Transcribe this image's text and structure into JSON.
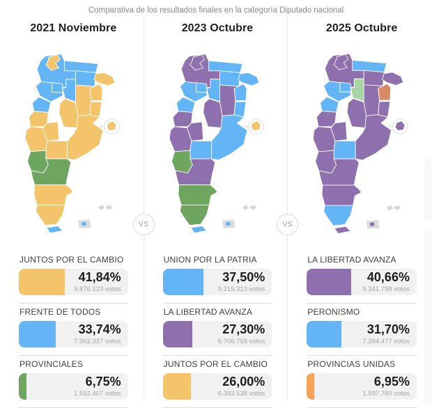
{
  "page": {
    "title": "Comparativa de los resultados finales en la categoría Diputado nacional"
  },
  "vs_label": "VS",
  "colors": {
    "blue": "#64b5f6",
    "yellow": "#f4c46a",
    "green": "#6ea55f",
    "purple": "#8d70ad",
    "light_green": "#a8d5a3",
    "salmon": "#d98a63",
    "orange": "#f8a157",
    "islands_gray": "#d7d7d7"
  },
  "columns": [
    {
      "title": "2021 Noviembre",
      "map": {
        "caba": "yellow",
        "islands": "blue",
        "provinces": {
          "jujuy": "yellow",
          "salta": "blue",
          "formosa": "blue",
          "chaco": "blue",
          "misiones": "yellow",
          "corrientes": "yellow",
          "tucuman": "blue",
          "santiago": "blue",
          "catamarca": "blue",
          "la_rioja": "blue",
          "santa_fe": "yellow",
          "entre_rios": "yellow",
          "cordoba": "yellow",
          "san_juan": "yellow",
          "san_luis": "yellow",
          "mendoza": "yellow",
          "la_pampa": "yellow",
          "buenos_aires": "yellow",
          "neuquen": "green",
          "rio_negro": "green",
          "chubut": "yellow",
          "santa_cruz": "yellow",
          "tierra_fuego": "blue"
        }
      },
      "results": [
        {
          "party": "JUNTOS POR EL CAMBIO",
          "percent": "41,84%",
          "percent_value": 41.84,
          "votes": "9.876.123 votos",
          "color": "yellow"
        },
        {
          "party": "FRENTE DE TODOS",
          "percent": "33,74%",
          "percent_value": 33.74,
          "votes": "7.962.337 votos",
          "color": "blue"
        },
        {
          "party": "PROVINCIALES",
          "percent": "6,75%",
          "percent_value": 6.75,
          "votes": "1.592.407 votos",
          "color": "green"
        }
      ]
    },
    {
      "title": "2023 Octubre",
      "map": {
        "caba": "yellow",
        "islands": "blue",
        "provinces": {
          "jujuy": "purple",
          "salta": "purple",
          "formosa": "blue",
          "chaco": "blue",
          "misiones": "blue",
          "corrientes": "blue",
          "tucuman": "blue",
          "santiago": "blue",
          "catamarca": "blue",
          "la_rioja": "blue",
          "santa_fe": "purple",
          "entre_rios": "blue",
          "cordoba": "purple",
          "san_juan": "purple",
          "san_luis": "purple",
          "mendoza": "purple",
          "la_pampa": "blue",
          "buenos_aires": "blue",
          "neuquen": "green",
          "rio_negro": "purple",
          "chubut": "green",
          "santa_cruz": "green",
          "tierra_fuego": "blue"
        }
      },
      "results": [
        {
          "party": "UNION POR LA PATRIA",
          "percent": "37,50%",
          "percent_value": 37.5,
          "votes": "9.215.313 votos",
          "color": "blue"
        },
        {
          "party": "LA LIBERTAD AVANZA",
          "percent": "27,30%",
          "percent_value": 27.3,
          "votes": "6.706.759 votos",
          "color": "purple"
        },
        {
          "party": "JUNTOS POR EL CAMBIO",
          "percent": "26,00%",
          "percent_value": 26.0,
          "votes": "6.393.538 votos",
          "color": "yellow"
        }
      ]
    },
    {
      "title": "2025 Octubre",
      "map": {
        "caba": "purple",
        "islands": "purple",
        "provinces": {
          "jujuy": "purple",
          "salta": "purple",
          "formosa": "blue",
          "chaco": "purple",
          "misiones": "purple",
          "corrientes": "salmon",
          "tucuman": "blue",
          "santiago": "light_green",
          "catamarca": "blue",
          "la_rioja": "blue",
          "santa_fe": "purple",
          "entre_rios": "purple",
          "cordoba": "purple",
          "san_juan": "purple",
          "san_luis": "purple",
          "mendoza": "purple",
          "la_pampa": "blue",
          "buenos_aires": "purple",
          "neuquen": "purple",
          "rio_negro": "purple",
          "chubut": "purple",
          "santa_cruz": "blue",
          "tierra_fuego": "purple"
        }
      },
      "results": [
        {
          "party": "LA LIBERTAD AVANZA",
          "percent": "40,66%",
          "percent_value": 40.66,
          "votes": "9.341.798 votos",
          "color": "purple"
        },
        {
          "party": "PERONISMO",
          "percent": "31,70%",
          "percent_value": 31.7,
          "votes": "7.284.477 votos",
          "color": "blue"
        },
        {
          "party": "PROVINCIAS UNIDAS",
          "percent": "6,95%",
          "percent_value": 6.95,
          "votes": "1.597.760 votos",
          "color": "orange"
        }
      ]
    }
  ],
  "chart_data": [
    {
      "type": "bar",
      "title": "2021 Noviembre",
      "categories": [
        "JUNTOS POR EL CAMBIO",
        "FRENTE DE TODOS",
        "PROVINCIALES"
      ],
      "values": [
        41.84,
        33.74,
        6.75
      ],
      "value_labels": [
        "41,84%",
        "33,74%",
        "6,75%"
      ],
      "votes": [
        "9.876.123 votos",
        "7.962.337 votos",
        "1.592.407 votos"
      ],
      "unit": "%",
      "xlim": [
        0,
        100
      ],
      "companion": "choropleth map of Argentina colored by winning party per province"
    },
    {
      "type": "bar",
      "title": "2023 Octubre",
      "categories": [
        "UNION POR LA PATRIA",
        "LA LIBERTAD AVANZA",
        "JUNTOS POR EL CAMBIO"
      ],
      "values": [
        37.5,
        27.3,
        26.0
      ],
      "value_labels": [
        "37,50%",
        "27,30%",
        "26,00%"
      ],
      "votes": [
        "9.215.313 votos",
        "6.706.759 votos",
        "6.393.538 votos"
      ],
      "unit": "%",
      "xlim": [
        0,
        100
      ],
      "companion": "choropleth map of Argentina colored by winning party per province"
    },
    {
      "type": "bar",
      "title": "2025 Octubre",
      "categories": [
        "LA LIBERTAD AVANZA",
        "PERONISMO",
        "PROVINCIAS UNIDAS"
      ],
      "values": [
        40.66,
        31.7,
        6.95
      ],
      "value_labels": [
        "40,66%",
        "31,70%",
        "6,95%"
      ],
      "votes": [
        "9.341.798 votos",
        "7.284.477 votos",
        "1.597.760 votos"
      ],
      "unit": "%",
      "xlim": [
        0,
        100
      ],
      "companion": "choropleth map of Argentina colored by winning party per province"
    }
  ]
}
